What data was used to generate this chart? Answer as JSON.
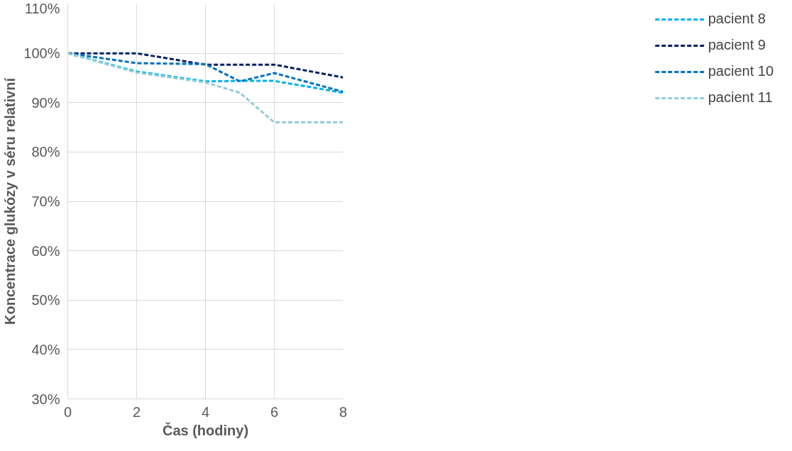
{
  "chart_data": {
    "type": "line",
    "xlabel": "Čas (hodiny)",
    "ylabel": "Koncentrace glukózy v séru relativní",
    "x": [
      0,
      2,
      4,
      5,
      6,
      8
    ],
    "series": [
      {
        "name": "pacient 8",
        "color": "#00b0f0",
        "values": [
          100,
          96.3,
          94.3,
          94.4,
          94.4,
          92.0
        ]
      },
      {
        "name": "pacient 9",
        "color": "#002060",
        "values": [
          100,
          100,
          97.7,
          97.7,
          97.7,
          95.1
        ]
      },
      {
        "name": "pacient 10",
        "color": "#0070c0",
        "values": [
          100,
          98.0,
          97.8,
          94.3,
          96.0,
          92.2
        ]
      },
      {
        "name": "pacient 11",
        "color": "#92cddc",
        "values": [
          100,
          96.1,
          94.1,
          92.0,
          86.0,
          86.0
        ]
      }
    ],
    "xlim": [
      0,
      8
    ],
    "xticks": [
      0,
      2,
      4,
      6,
      8
    ],
    "ylim": [
      30,
      110
    ],
    "yticks": [
      {
        "value": 30,
        "label": "30%"
      },
      {
        "value": 40,
        "label": "40%"
      },
      {
        "value": 50,
        "label": "50%"
      },
      {
        "value": 60,
        "label": "60%"
      },
      {
        "value": 70,
        "label": "70%"
      },
      {
        "value": 80,
        "label": "80%"
      },
      {
        "value": 90,
        "label": "90%"
      },
      {
        "value": 100,
        "label": "100%"
      },
      {
        "value": 110,
        "label": "110%"
      }
    ],
    "grid": true,
    "legend": "right",
    "line_style": "dashed",
    "marker": "none"
  }
}
